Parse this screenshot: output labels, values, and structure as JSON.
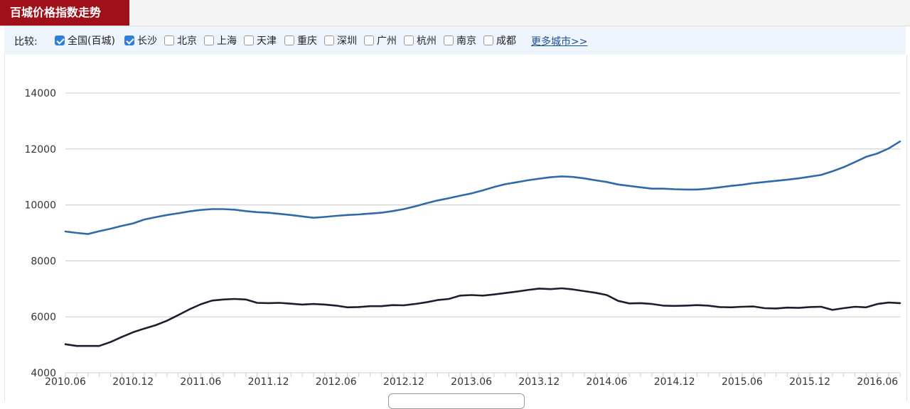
{
  "header": {
    "title": "百城价格指数走势"
  },
  "filter": {
    "label": "比较:",
    "options": [
      {
        "label": "全国(百城)",
        "checked": true
      },
      {
        "label": "长沙",
        "checked": true
      },
      {
        "label": "北京",
        "checked": false
      },
      {
        "label": "上海",
        "checked": false
      },
      {
        "label": "天津",
        "checked": false
      },
      {
        "label": "重庆",
        "checked": false
      },
      {
        "label": "深圳",
        "checked": false
      },
      {
        "label": "广州",
        "checked": false
      },
      {
        "label": "杭州",
        "checked": false
      },
      {
        "label": "南京",
        "checked": false
      },
      {
        "label": "成都",
        "checked": false
      }
    ],
    "more_link": "更多城市>>"
  },
  "chart_data": {
    "type": "line",
    "title": "",
    "xlabel": "",
    "ylabel": "",
    "ylim": [
      4000,
      14000
    ],
    "yticks": [
      4000,
      6000,
      8000,
      10000,
      12000,
      14000
    ],
    "xtick_labels": [
      "2010.06",
      "2010.12",
      "2011.06",
      "2011.12",
      "2012.06",
      "2012.12",
      "2013.06",
      "2013.12",
      "2014.06",
      "2014.12",
      "2015.06",
      "2015.12",
      "2016.06"
    ],
    "x": [
      "2010.06",
      "2010.07",
      "2010.08",
      "2010.09",
      "2010.10",
      "2010.11",
      "2010.12",
      "2011.01",
      "2011.02",
      "2011.03",
      "2011.04",
      "2011.05",
      "2011.06",
      "2011.07",
      "2011.08",
      "2011.09",
      "2011.10",
      "2011.11",
      "2011.12",
      "2012.01",
      "2012.02",
      "2012.03",
      "2012.04",
      "2012.05",
      "2012.06",
      "2012.07",
      "2012.08",
      "2012.09",
      "2012.10",
      "2012.11",
      "2012.12",
      "2013.01",
      "2013.02",
      "2013.03",
      "2013.04",
      "2013.05",
      "2013.06",
      "2013.07",
      "2013.08",
      "2013.09",
      "2013.10",
      "2013.11",
      "2013.12",
      "2014.01",
      "2014.02",
      "2014.03",
      "2014.04",
      "2014.05",
      "2014.06",
      "2014.07",
      "2014.08",
      "2014.09",
      "2014.10",
      "2014.11",
      "2014.12",
      "2015.01",
      "2015.02",
      "2015.03",
      "2015.04",
      "2015.05",
      "2015.06",
      "2015.07",
      "2015.08",
      "2015.09",
      "2015.10",
      "2015.11",
      "2015.12",
      "2016.01",
      "2016.02",
      "2016.03",
      "2016.04",
      "2016.05",
      "2016.06",
      "2016.07",
      "2016.08"
    ],
    "series": [
      {
        "name": "全国(百城)",
        "color": "#2f6aa8",
        "values": [
          9050,
          9000,
          8960,
          9060,
          9150,
          9250,
          9340,
          9480,
          9560,
          9640,
          9700,
          9770,
          9820,
          9850,
          9850,
          9830,
          9780,
          9740,
          9720,
          9680,
          9640,
          9590,
          9540,
          9570,
          9610,
          9640,
          9660,
          9690,
          9720,
          9780,
          9850,
          9950,
          10060,
          10160,
          10240,
          10330,
          10410,
          10520,
          10640,
          10740,
          10810,
          10880,
          10940,
          10990,
          11020,
          11000,
          10950,
          10880,
          10820,
          10730,
          10680,
          10630,
          10580,
          10580,
          10560,
          10550,
          10550,
          10580,
          10630,
          10680,
          10720,
          10780,
          10820,
          10860,
          10900,
          10950,
          11010,
          11070,
          11200,
          11350,
          11530,
          11720,
          11840,
          12020,
          12270
        ]
      },
      {
        "name": "长沙",
        "color": "#1a1f2e",
        "values": [
          5020,
          4960,
          4960,
          4960,
          5100,
          5280,
          5450,
          5580,
          5700,
          5860,
          6060,
          6270,
          6450,
          6580,
          6620,
          6640,
          6620,
          6500,
          6490,
          6500,
          6470,
          6440,
          6460,
          6440,
          6400,
          6340,
          6350,
          6380,
          6380,
          6420,
          6410,
          6460,
          6520,
          6600,
          6640,
          6760,
          6780,
          6760,
          6800,
          6850,
          6900,
          6960,
          7010,
          6990,
          7020,
          6980,
          6920,
          6860,
          6780,
          6570,
          6480,
          6490,
          6460,
          6400,
          6390,
          6400,
          6420,
          6400,
          6350,
          6340,
          6360,
          6370,
          6310,
          6300,
          6330,
          6320,
          6350,
          6360,
          6250,
          6310,
          6360,
          6340,
          6460,
          6510,
          6490
        ]
      }
    ]
  }
}
